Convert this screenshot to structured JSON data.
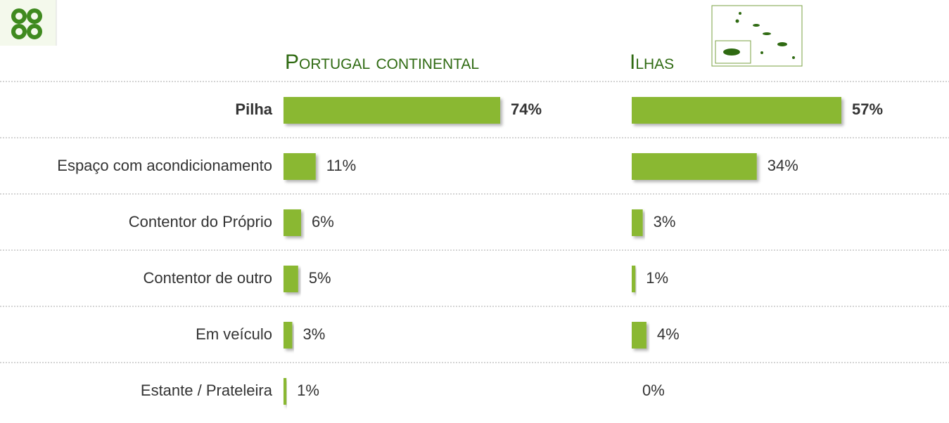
{
  "chart_data": [
    {
      "type": "bar",
      "title": "Portugal continental",
      "color": "#8ab833",
      "categories": [
        "Pilha",
        "Espaço com acondicionamento",
        "Contentor do Próprio",
        "Contentor de outro",
        "Em veículo",
        "Estante / Prateleira"
      ],
      "values": [
        74,
        11,
        6,
        5,
        3,
        1
      ],
      "value_labels": [
        "74%",
        "11%",
        "6%",
        "5%",
        "3%",
        "1%"
      ]
    },
    {
      "type": "bar",
      "title": "Ilhas",
      "color": "#8ab833",
      "values": [
        57,
        34,
        3,
        1,
        4,
        0
      ],
      "value_labels": [
        "57%",
        "34%",
        "3%",
        "1%",
        "4%",
        "0%"
      ]
    }
  ]
}
